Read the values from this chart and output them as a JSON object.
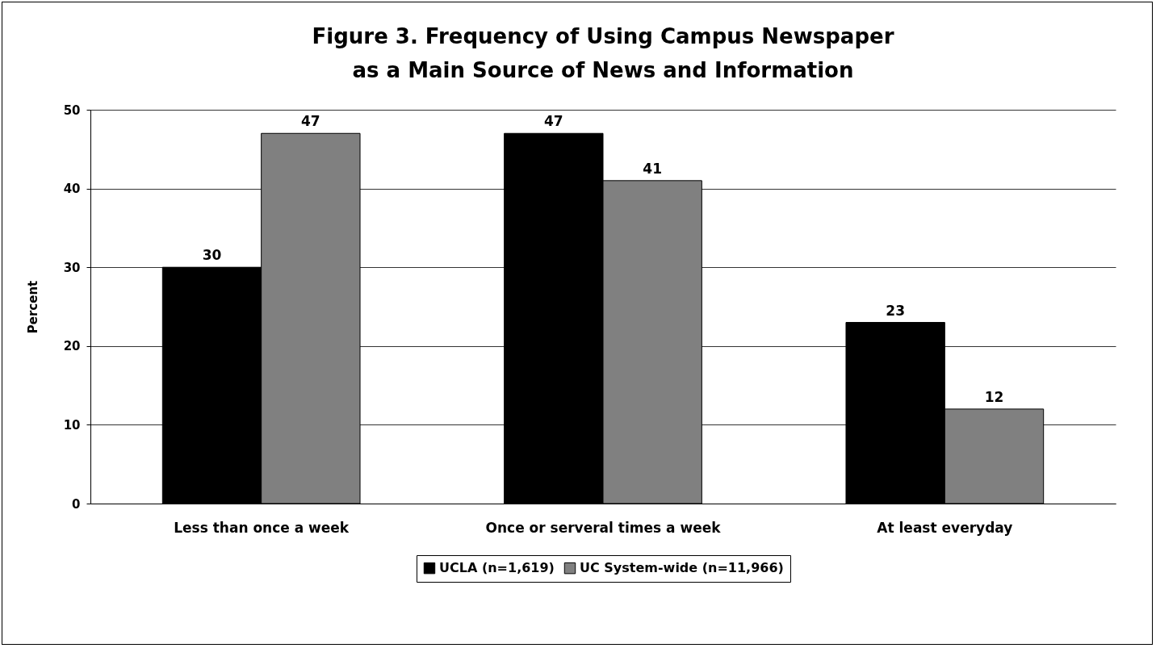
{
  "chart_data": {
    "type": "bar",
    "title": "Figure 3. Frequency of Using Campus Newspaper as a Main Source of News and Information",
    "ylabel": "Percent",
    "categories": [
      "Less than once a week",
      "Once or serveral times a week",
      "At least everyday"
    ],
    "series": [
      {
        "name": "UCLA (n=1,619)",
        "color": "#000000",
        "values": [
          30,
          47,
          23
        ]
      },
      {
        "name": "UC System-wide (n=11,966)",
        "color": "#808080",
        "values": [
          47,
          41,
          12
        ]
      }
    ],
    "ylim": [
      0,
      50
    ],
    "yticks": [
      0,
      10,
      20,
      30,
      40,
      50
    ],
    "grid": "y",
    "legend": "bottom",
    "data_labels": true
  }
}
